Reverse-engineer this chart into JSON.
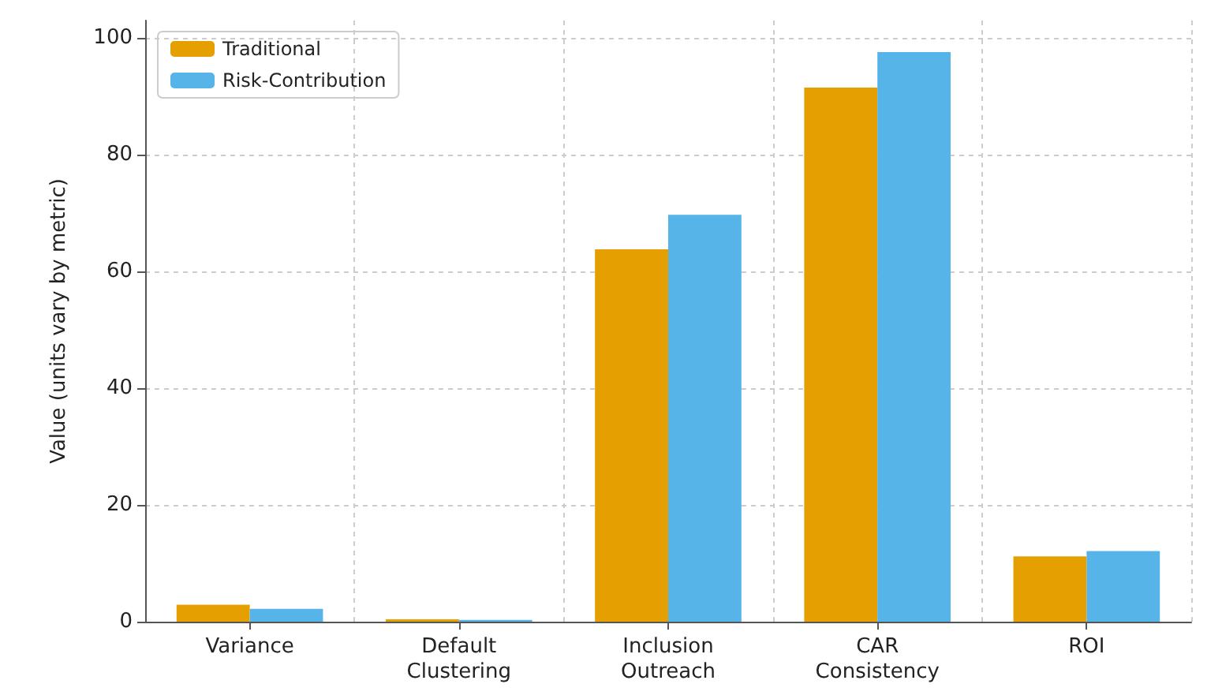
{
  "chart_data": {
    "type": "bar",
    "ylabel": "Value (units vary by metric)",
    "categories": [
      "Variance",
      "Default\nClustering",
      "Inclusion\nOutreach",
      "CAR\nConsistency",
      "ROI"
    ],
    "series": [
      {
        "name": "Traditional",
        "color": "#e69f00",
        "values": [
          2.9,
          0.4,
          63.8,
          91.5,
          11.2
        ]
      },
      {
        "name": "Risk-Contribution",
        "color": "#56b4e9",
        "values": [
          2.2,
          0.3,
          69.7,
          97.6,
          12.1
        ]
      }
    ],
    "ylim": [
      0,
      103
    ],
    "yticks": [
      0,
      20,
      40,
      60,
      80,
      100
    ],
    "grid": true,
    "legend": "top left"
  }
}
